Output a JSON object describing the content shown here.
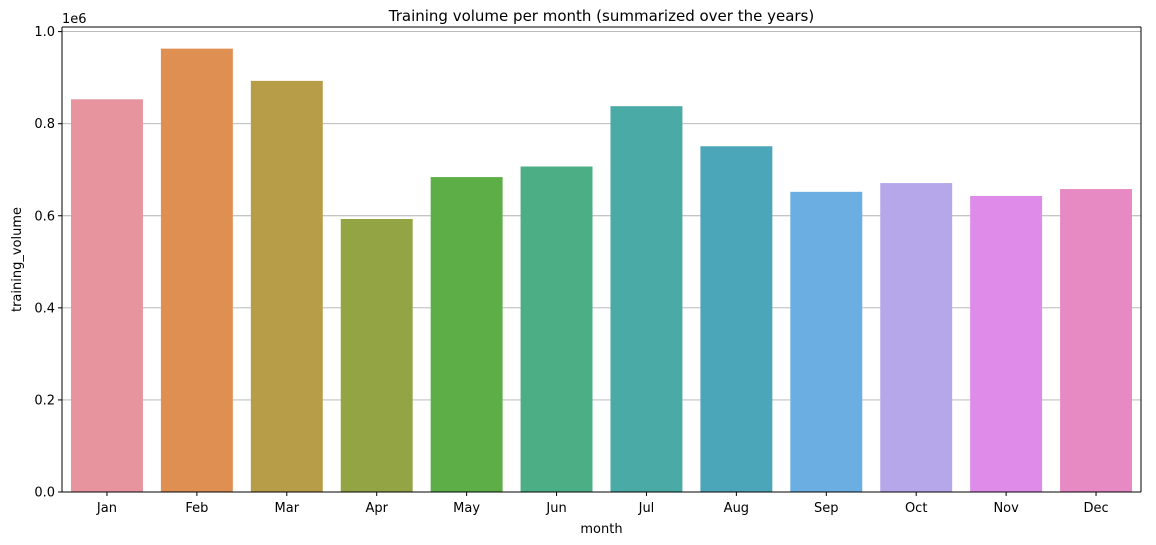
{
  "chart_data": {
    "type": "bar",
    "title": "Training volume per month (summarized over the years)",
    "xlabel": "month",
    "ylabel": "training_volume",
    "y_offset_label": "1e6",
    "categories": [
      "Jan",
      "Feb",
      "Mar",
      "Apr",
      "May",
      "Jun",
      "Jul",
      "Aug",
      "Sep",
      "Oct",
      "Nov",
      "Dec"
    ],
    "values": [
      853000,
      963000,
      893000,
      593000,
      684000,
      707000,
      838000,
      751000,
      652000,
      671000,
      643000,
      658000
    ],
    "ylim": [
      0,
      1010000
    ],
    "yticks": [
      0,
      200000,
      400000,
      600000,
      800000,
      1000000
    ],
    "ytick_labels": [
      "0.0",
      "0.2",
      "0.4",
      "0.6",
      "0.8",
      "1.0"
    ],
    "grid": "y",
    "colors": [
      "#e8949f",
      "#e08f52",
      "#b79d47",
      "#93a444",
      "#5eae47",
      "#4bae84",
      "#4aaaa6",
      "#4ca6ba",
      "#6aaee2",
      "#b5a7ea",
      "#df8be9",
      "#e78ac4"
    ]
  }
}
